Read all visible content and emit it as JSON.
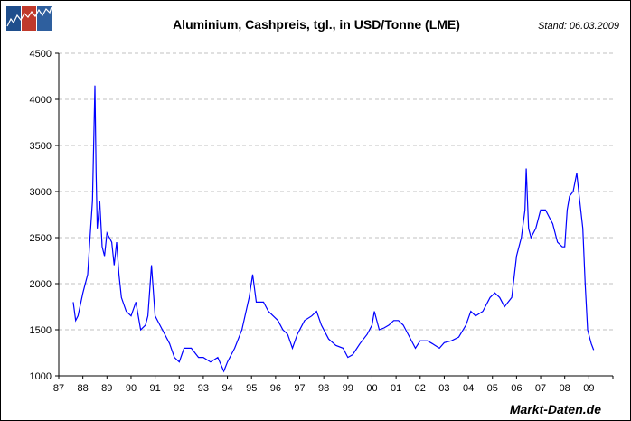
{
  "header": {
    "title": "Aluminium, Cashpreis, tgl., in USD/Tonne (LME)",
    "stand": "Stand: 06.03.2009",
    "logo_icon": "chart-logo-icon"
  },
  "footer": {
    "source": "Markt-Daten.de"
  },
  "colors": {
    "line": "#0000ff",
    "grid": "#c0c0c0",
    "logo_blue": "#1f4e8c",
    "logo_red": "#c0392b"
  },
  "chart_data": {
    "type": "line",
    "title": "Aluminium, Cashpreis, tgl., in USD/Tonne (LME)",
    "xlabel": "",
    "ylabel": "",
    "xlim": [
      1987,
      2010
    ],
    "ylim": [
      1000,
      4500
    ],
    "grid": "horizontal dashed",
    "x_tick_labels": [
      "87",
      "88",
      "89",
      "90",
      "91",
      "92",
      "93",
      "94",
      "95",
      "96",
      "97",
      "98",
      "99",
      "00",
      "01",
      "02",
      "03",
      "04",
      "05",
      "06",
      "07",
      "08",
      "09"
    ],
    "y_tick_labels": [
      "1000",
      "1500",
      "2000",
      "2500",
      "3000",
      "3500",
      "4000",
      "4500"
    ],
    "series": [
      {
        "x": [
          1987.6,
          1987.7,
          1987.8,
          1988.0,
          1988.2,
          1988.3,
          1988.4,
          1988.45,
          1988.5,
          1988.55,
          1988.6,
          1988.7,
          1988.8,
          1988.9,
          1989.0,
          1989.2,
          1989.3,
          1989.4,
          1989.5,
          1989.6,
          1989.8,
          1990.0,
          1990.2,
          1990.4,
          1990.6,
          1990.7,
          1990.85,
          1991.0,
          1991.2,
          1991.4,
          1991.6,
          1991.8,
          1992.0,
          1992.2,
          1992.5,
          1992.8,
          1993.0,
          1993.3,
          1993.6,
          1993.85,
          1994.0,
          1994.3,
          1994.6,
          1994.9,
          1995.05,
          1995.2,
          1995.5,
          1995.7,
          1995.9,
          1996.1,
          1996.3,
          1996.5,
          1996.7,
          1996.9,
          1997.2,
          1997.5,
          1997.7,
          1997.9,
          1998.2,
          1998.5,
          1998.8,
          1999.0,
          1999.2,
          1999.5,
          1999.8,
          2000.0,
          2000.1,
          2000.3,
          2000.5,
          2000.7,
          2000.9,
          2001.1,
          2001.3,
          2001.5,
          2001.8,
          2002.0,
          2002.3,
          2002.5,
          2002.8,
          2003.0,
          2003.3,
          2003.6,
          2003.9,
          2004.1,
          2004.3,
          2004.6,
          2004.9,
          2005.1,
          2005.3,
          2005.5,
          2005.8,
          2006.0,
          2006.2,
          2006.35,
          2006.4,
          2006.5,
          2006.6,
          2006.8,
          2007.0,
          2007.2,
          2007.4,
          2007.5,
          2007.7,
          2007.9,
          2008.0,
          2008.1,
          2008.2,
          2008.35,
          2008.5,
          2008.6,
          2008.75,
          2008.85,
          2008.95,
          2009.0,
          2009.1,
          2009.2
        ],
        "values": [
          1800,
          1600,
          1650,
          1900,
          2100,
          2500,
          2900,
          3500,
          4150,
          3200,
          2600,
          2900,
          2400,
          2300,
          2550,
          2450,
          2200,
          2450,
          2100,
          1850,
          1700,
          1650,
          1800,
          1500,
          1550,
          1650,
          2200,
          1650,
          1550,
          1450,
          1350,
          1200,
          1150,
          1300,
          1300,
          1200,
          1200,
          1150,
          1200,
          1050,
          1150,
          1300,
          1500,
          1850,
          2100,
          1800,
          1800,
          1700,
          1650,
          1600,
          1500,
          1450,
          1300,
          1450,
          1600,
          1650,
          1700,
          1550,
          1400,
          1330,
          1300,
          1200,
          1230,
          1350,
          1450,
          1550,
          1700,
          1500,
          1520,
          1550,
          1600,
          1600,
          1550,
          1450,
          1300,
          1380,
          1380,
          1350,
          1300,
          1360,
          1380,
          1420,
          1550,
          1700,
          1650,
          1700,
          1850,
          1900,
          1850,
          1750,
          1850,
          2300,
          2500,
          2800,
          3250,
          2600,
          2500,
          2600,
          2800,
          2800,
          2700,
          2650,
          2450,
          2400,
          2400,
          2800,
          2950,
          3000,
          3200,
          2950,
          2600,
          2000,
          1500,
          1450,
          1350,
          1280
        ]
      }
    ]
  }
}
